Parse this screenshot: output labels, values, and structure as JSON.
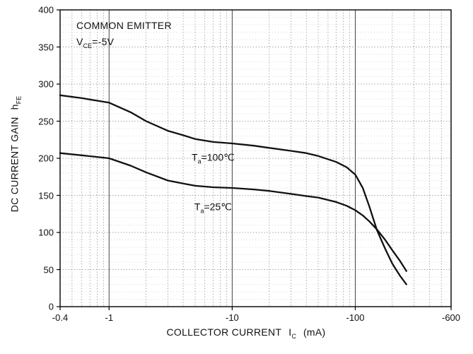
{
  "chart_data": {
    "type": "line",
    "xlabel": "COLLECTOR CURRENT",
    "xlabel_symbol": "I",
    "xlabel_symbol_sub": "C",
    "xlabel_unit": "(mA)",
    "ylabel": "DC CURRENT GAIN",
    "ylabel_symbol": "h",
    "ylabel_symbol_sub": "FE",
    "x_scale": "log-negative",
    "x_range_abs": [
      0.4,
      600
    ],
    "x_ticks": [
      {
        "abs": 0.4,
        "label": "-0.4"
      },
      {
        "abs": 1,
        "label": "-1"
      },
      {
        "abs": 10,
        "label": "-10"
      },
      {
        "abs": 100,
        "label": "-100"
      },
      {
        "abs": 600,
        "label": "-600"
      }
    ],
    "ylim": [
      0,
      400
    ],
    "y_tick_step": 50,
    "grid": "dotted-log-minor",
    "legend_position": "inline-curve-labels",
    "annotations": {
      "line1": "COMMON EMITTER",
      "line2_pre": "V",
      "line2_sub": "CE",
      "line2_rest": "=-5V"
    },
    "colors": {
      "curve": "#111111",
      "frame": "#000000",
      "grid_minor": "#777777",
      "grid_minor_light": "#b5b5b5",
      "grid_decade": "#444444"
    },
    "series": [
      {
        "name": "Ta=100C",
        "label_pre": "T",
        "label_sub": "a",
        "label_rest": "=100℃",
        "label_anchor": {
          "x_abs": 7,
          "y_val": 200
        },
        "x_abs": [
          0.4,
          0.6,
          1,
          1.5,
          2,
          3,
          4,
          5,
          7,
          10,
          15,
          20,
          30,
          40,
          50,
          70,
          85,
          100,
          115,
          130,
          150,
          175,
          200,
          230,
          260
        ],
        "y": [
          285,
          281,
          275,
          262,
          250,
          237,
          231,
          226,
          222,
          220,
          217,
          214,
          210,
          207,
          203,
          195,
          188,
          178,
          160,
          135,
          103,
          78,
          58,
          42,
          30
        ]
      },
      {
        "name": "Ta=25C",
        "label_pre": "T",
        "label_sub": "a",
        "label_rest": "=25℃",
        "label_anchor": {
          "x_abs": 7,
          "y_val": 133
        },
        "x_abs": [
          0.4,
          0.6,
          1,
          1.5,
          2,
          3,
          4,
          5,
          7,
          10,
          15,
          20,
          30,
          40,
          50,
          70,
          85,
          100,
          115,
          130,
          150,
          175,
          200,
          230,
          260
        ],
        "y": [
          207,
          204,
          200,
          190,
          181,
          170,
          166,
          163,
          161,
          160,
          158,
          156,
          152,
          149,
          147,
          141,
          136,
          130,
          123,
          115,
          104,
          90,
          76,
          62,
          48
        ]
      }
    ]
  }
}
